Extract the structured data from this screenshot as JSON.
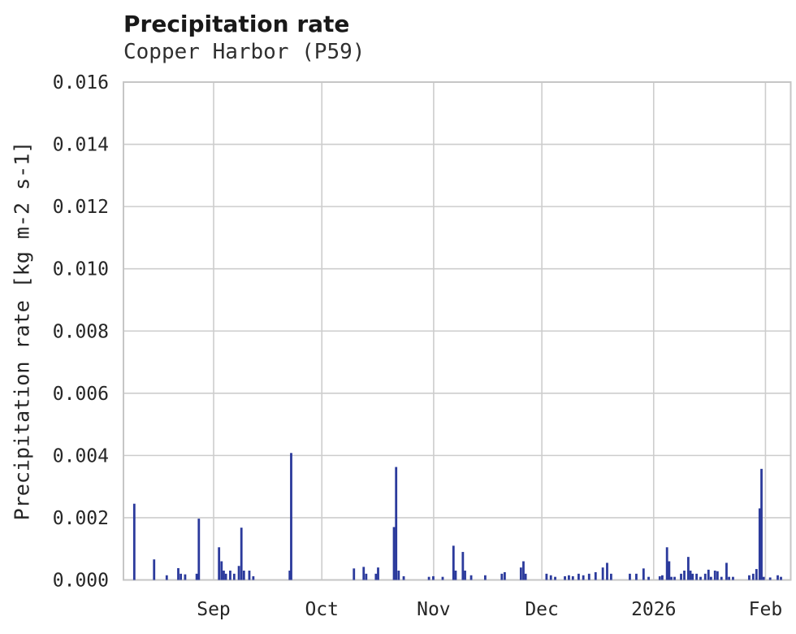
{
  "chart_data": {
    "type": "bar",
    "title": "Precipitation rate",
    "subtitle": "Copper Harbor (P59)",
    "xlabel": "",
    "ylabel": "Precipitation rate [kg m-2 s-1]",
    "ylim": [
      0,
      0.016
    ],
    "grid": true,
    "legend": "none",
    "yticks": {
      "values": [
        0.0,
        0.002,
        0.004,
        0.006,
        0.008,
        0.01,
        0.012,
        0.014,
        0.016
      ],
      "labels": [
        "0.000",
        "0.002",
        "0.004",
        "0.006",
        "0.008",
        "0.010",
        "0.012",
        "0.014",
        "0.016"
      ]
    },
    "x_domain": {
      "unit": "days",
      "range": [
        0,
        185
      ]
    },
    "xticks": [
      {
        "day": 25,
        "label": "Sep"
      },
      {
        "day": 55,
        "label": "Oct"
      },
      {
        "day": 86,
        "label": "Nov"
      },
      {
        "day": 116,
        "label": "Dec"
      },
      {
        "day": 147,
        "label": "2026"
      },
      {
        "day": 178,
        "label": "Feb"
      }
    ],
    "colors": {
      "bar": "#2b3a9c",
      "grid": "#cdcdcd",
      "frame": "#c6c6c6",
      "title": "#191919",
      "text": "#262626"
    },
    "series": [
      {
        "name": "precipitation rate",
        "points": [
          [
            3.0,
            0.00245
          ],
          [
            8.5,
            0.00066
          ],
          [
            12.0,
            0.00015
          ],
          [
            15.2,
            0.00038
          ],
          [
            15.9,
            0.0002
          ],
          [
            17.1,
            0.00018
          ],
          [
            20.3,
            0.0002
          ],
          [
            20.9,
            0.00197
          ],
          [
            26.5,
            0.00105
          ],
          [
            27.2,
            0.0006
          ],
          [
            27.8,
            0.0003
          ],
          [
            28.4,
            0.0002
          ],
          [
            29.6,
            0.0003
          ],
          [
            30.7,
            0.0002
          ],
          [
            32.0,
            0.00045
          ],
          [
            32.7,
            0.00168
          ],
          [
            33.4,
            0.0003
          ],
          [
            34.9,
            0.0003
          ],
          [
            36.0,
            0.00012
          ],
          [
            46.1,
            0.0003
          ],
          [
            46.5,
            0.00408
          ],
          [
            63.9,
            0.00037
          ],
          [
            66.6,
            0.00042
          ],
          [
            67.3,
            0.0002
          ],
          [
            70.0,
            0.0002
          ],
          [
            70.6,
            0.0004
          ],
          [
            75.0,
            0.0017
          ],
          [
            75.6,
            0.00363
          ],
          [
            76.3,
            0.0003
          ],
          [
            77.7,
            0.00012
          ],
          [
            84.7,
            0.0001
          ],
          [
            85.9,
            0.00012
          ],
          [
            88.5,
            0.0001
          ],
          [
            91.5,
            0.0011
          ],
          [
            92.1,
            0.0003
          ],
          [
            94.1,
            0.0009
          ],
          [
            94.7,
            0.0003
          ],
          [
            96.4,
            0.00015
          ],
          [
            100.3,
            0.00015
          ],
          [
            104.9,
            0.0002
          ],
          [
            105.7,
            0.00025
          ],
          [
            110.2,
            0.0004
          ],
          [
            110.9,
            0.0006
          ],
          [
            111.5,
            0.0002
          ],
          [
            117.3,
            0.0002
          ],
          [
            118.5,
            0.00015
          ],
          [
            119.7,
            0.0001
          ],
          [
            122.4,
            0.00012
          ],
          [
            123.5,
            0.00015
          ],
          [
            124.6,
            0.00012
          ],
          [
            126.2,
            0.0002
          ],
          [
            127.5,
            0.00015
          ],
          [
            129.1,
            0.0002
          ],
          [
            130.9,
            0.00025
          ],
          [
            132.9,
            0.0004
          ],
          [
            134.1,
            0.00055
          ],
          [
            135.2,
            0.0002
          ],
          [
            140.4,
            0.0002
          ],
          [
            142.2,
            0.0002
          ],
          [
            144.2,
            0.00037
          ],
          [
            145.6,
            0.0001
          ],
          [
            148.7,
            0.00012
          ],
          [
            149.4,
            0.00015
          ],
          [
            150.7,
            0.00105
          ],
          [
            151.3,
            0.0006
          ],
          [
            151.9,
            0.0001
          ],
          [
            152.8,
            0.0001
          ],
          [
            154.6,
            0.0002
          ],
          [
            155.5,
            0.0003
          ],
          [
            156.6,
            0.00074
          ],
          [
            157.2,
            0.0003
          ],
          [
            157.8,
            0.0002
          ],
          [
            158.9,
            0.0002
          ],
          [
            160.0,
            0.0001
          ],
          [
            161.3,
            0.0002
          ],
          [
            162.2,
            0.00033
          ],
          [
            162.9,
            0.0001
          ],
          [
            164.0,
            0.0003
          ],
          [
            164.7,
            0.00028
          ],
          [
            165.8,
            0.0001
          ],
          [
            167.2,
            0.00055
          ],
          [
            167.9,
            0.0001
          ],
          [
            169.0,
            0.0001
          ],
          [
            173.5,
            0.00015
          ],
          [
            174.6,
            0.0002
          ],
          [
            175.5,
            0.00035
          ],
          [
            176.4,
            0.0023
          ],
          [
            176.9,
            0.00357
          ],
          [
            177.5,
            0.0001
          ],
          [
            179.3,
            8e-05
          ],
          [
            181.4,
            0.00015
          ],
          [
            182.3,
            0.0001
          ]
        ]
      }
    ]
  }
}
